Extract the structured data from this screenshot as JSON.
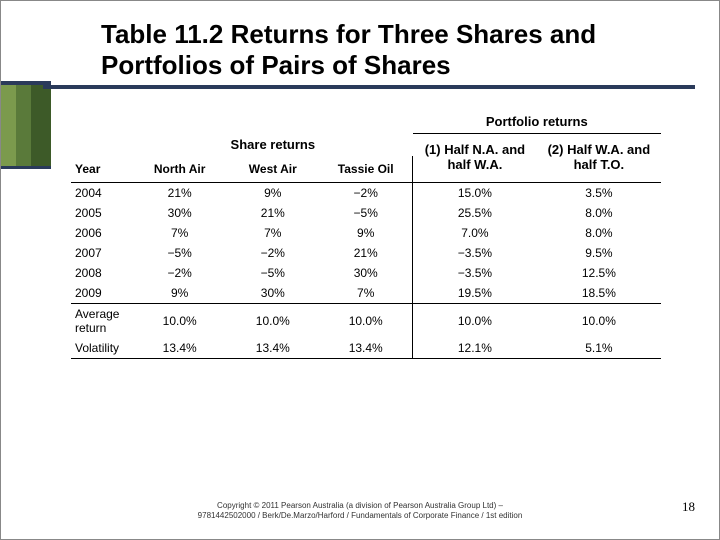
{
  "title": "Table 11.2 Returns for Three Shares and Portfolios of Pairs of Shares",
  "superheaders": {
    "share": "Share returns",
    "portfolio": "Portfolio returns"
  },
  "cols": {
    "year": "Year",
    "na": "North Air",
    "wa": "West Air",
    "to": "Tassie Oil",
    "p1": "(1) Half N.A. and half W.A.",
    "p2": "(2) Half W.A. and half T.O."
  },
  "rows": [
    {
      "year": "2004",
      "na": "21%",
      "wa": "9%",
      "to": "−2%",
      "p1": "15.0%",
      "p2": "3.5%"
    },
    {
      "year": "2005",
      "na": "30%",
      "wa": "21%",
      "to": "−5%",
      "p1": "25.5%",
      "p2": "8.0%"
    },
    {
      "year": "2006",
      "na": "7%",
      "wa": "7%",
      "to": "9%",
      "p1": "7.0%",
      "p2": "8.0%"
    },
    {
      "year": "2007",
      "na": "−5%",
      "wa": "−2%",
      "to": "21%",
      "p1": "−3.5%",
      "p2": "9.5%"
    },
    {
      "year": "2008",
      "na": "−2%",
      "wa": "−5%",
      "to": "30%",
      "p1": "−3.5%",
      "p2": "12.5%"
    },
    {
      "year": "2009",
      "na": "9%",
      "wa": "30%",
      "to": "7%",
      "p1": "19.5%",
      "p2": "18.5%"
    }
  ],
  "summary": [
    {
      "label": "Average return",
      "na": "10.0%",
      "wa": "10.0%",
      "to": "10.0%",
      "p1": "10.0%",
      "p2": "10.0%"
    },
    {
      "label": "Volatility",
      "na": "13.4%",
      "wa": "13.4%",
      "to": "13.4%",
      "p1": "12.1%",
      "p2": "5.1%"
    }
  ],
  "footer": {
    "line1": "Copyright © 2011 Pearson Australia (a division of Pearson Australia Group Ltd) –",
    "line2": "9781442502000 / Berk/De.Marzo/Harford / Fundamentals of Corporate Finance / 1st edition"
  },
  "pagenum": "18"
}
